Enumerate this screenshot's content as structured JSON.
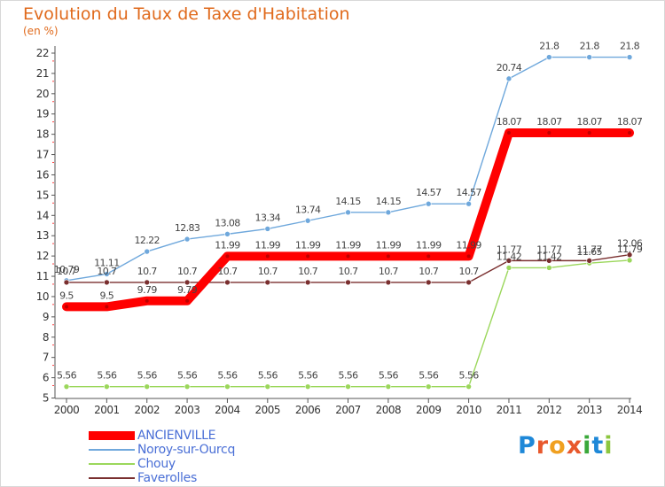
{
  "chart_data": {
    "type": "line",
    "title": "Evolution du Taux de Taxe d'Habitation",
    "unit_label": "(en %)",
    "x": [
      "2000",
      "2001",
      "2002",
      "2003",
      "2004",
      "2005",
      "2006",
      "2007",
      "2008",
      "2009",
      "2010",
      "2011",
      "2012",
      "2013",
      "2014"
    ],
    "ylim": [
      5,
      22
    ],
    "yticks": [
      5,
      6,
      7,
      8,
      9,
      10,
      11,
      12,
      13,
      14,
      15,
      16,
      17,
      18,
      19,
      20,
      21,
      22
    ],
    "grid": false,
    "legend_position": "bottom-left",
    "series": [
      {
        "name": "ANCIENVILLE",
        "color": "#ff0000",
        "values": [
          9.5,
          9.5,
          9.79,
          9.79,
          11.99,
          11.99,
          11.99,
          11.99,
          11.99,
          11.99,
          11.99,
          18.07,
          18.07,
          18.07,
          18.07
        ],
        "labels": [
          "9.5",
          "9.5",
          "9.79",
          "9.79",
          "11.99",
          "11.99",
          "11.99",
          "11.99",
          "11.99",
          "11.99",
          "11.99",
          "18.07",
          "18.07",
          "18.07",
          "18.07"
        ]
      },
      {
        "name": "Noroy-sur-Ourcq",
        "color": "#6fa8dc",
        "values": [
          10.79,
          11.11,
          12.22,
          12.83,
          13.08,
          13.34,
          13.74,
          14.15,
          14.15,
          14.57,
          14.57,
          20.74,
          21.8,
          21.8,
          21.8
        ],
        "labels": [
          "10.79",
          "11.11",
          "12.22",
          "12.83",
          "13.08",
          "13.34",
          "13.74",
          "14.15",
          "14.15",
          "14.57",
          "14.57",
          "20.74",
          "21.8",
          "21.8",
          "21.8"
        ]
      },
      {
        "name": "Chouy",
        "color": "#9bd75b",
        "values": [
          5.56,
          5.56,
          5.56,
          5.56,
          5.56,
          5.56,
          5.56,
          5.56,
          5.56,
          5.56,
          5.56,
          11.42,
          11.42,
          11.65,
          11.79
        ],
        "labels": [
          "5.56",
          "5.56",
          "5.56",
          "5.56",
          "5.56",
          "5.56",
          "5.56",
          "5.56",
          "5.56",
          "5.56",
          "5.56",
          "11.42",
          "11.42",
          "11.65",
          "11.79"
        ]
      },
      {
        "name": "Faverolles",
        "color": "#7a2f2f",
        "values": [
          10.7,
          10.7,
          10.7,
          10.7,
          10.7,
          10.7,
          10.7,
          10.7,
          10.7,
          10.7,
          10.7,
          11.77,
          11.77,
          11.77,
          12.06
        ],
        "labels": [
          "10.7",
          "10.7",
          "10.7",
          "10.7",
          "10.7",
          "10.7",
          "10.7",
          "10.7",
          "10.7",
          "10.7",
          "10.7",
          "11.77",
          "11.77",
          "11.77",
          "12.06"
        ]
      }
    ]
  },
  "logo": {
    "text": "Proxiti",
    "letters": [
      "P",
      "r",
      "o",
      "x",
      "i",
      "t",
      "i"
    ],
    "colors": [
      "#1e88d8",
      "#e8582c",
      "#f0a020",
      "#e8582c",
      "#3aa83a",
      "#1e88d8",
      "#8cc63f"
    ]
  }
}
